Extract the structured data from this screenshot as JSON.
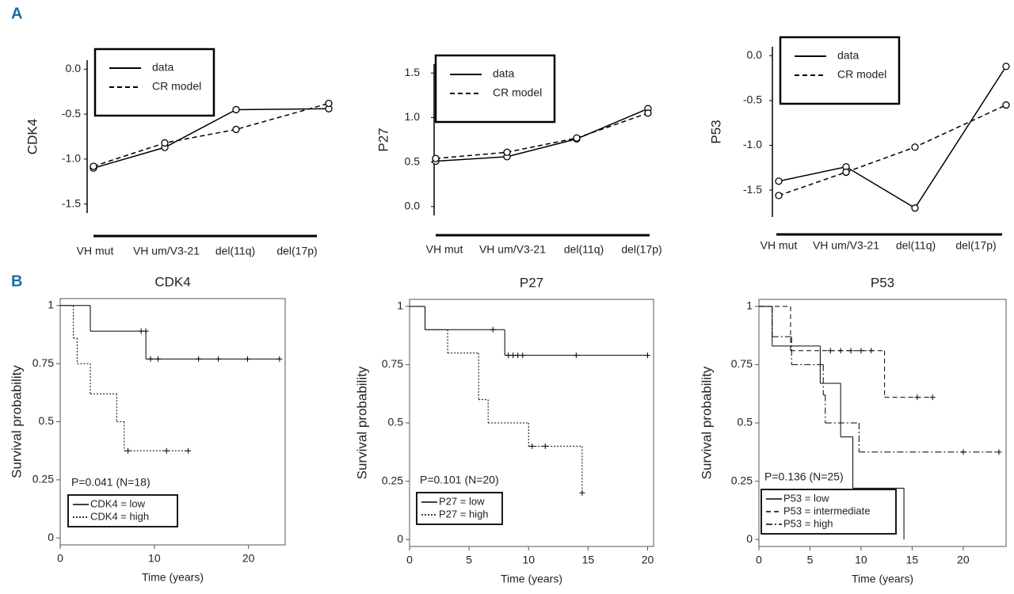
{
  "panel_labels": [
    "A",
    "B"
  ],
  "chart_data": [
    {
      "type": "line",
      "ylabel": "CDK4",
      "marker": "circle",
      "categories": [
        "VH mut",
        "VH um/V3-21",
        "del(11q)",
        "del(17p)"
      ],
      "series": [
        {
          "name": "data",
          "color": "#000000",
          "dash": "solid",
          "values": [
            -1.1,
            -0.87,
            -0.45,
            -0.44
          ]
        },
        {
          "name": "CR model",
          "color": "#000000",
          "dash": "dashed",
          "values": [
            -1.08,
            -0.82,
            -0.67,
            -0.38
          ]
        }
      ],
      "ylim": [
        -1.6,
        0.1
      ],
      "yticks": [
        {
          "value": 0,
          "label": "0.0"
        },
        -0.5,
        {
          "value": -1,
          "label": "-1.0"
        },
        -1.5
      ]
    },
    {
      "type": "line",
      "ylabel": "P27",
      "marker": "circle",
      "categories": [
        "VH mut",
        "VH um/V3-21",
        "del(11q)",
        "del(17p)"
      ],
      "series": [
        {
          "name": "data",
          "color": "#000000",
          "dash": "solid",
          "values": [
            0.51,
            0.56,
            0.76,
            1.1
          ]
        },
        {
          "name": "CR model",
          "color": "#000000",
          "dash": "dashed",
          "values": [
            0.54,
            0.61,
            0.77,
            1.05
          ]
        }
      ],
      "ylim": [
        -0.1,
        1.6
      ],
      "yticks": [
        {
          "value": 0,
          "label": "0.0"
        },
        0.5,
        {
          "value": 1,
          "label": "1.0"
        },
        1.5
      ]
    },
    {
      "type": "line",
      "ylabel": "P53",
      "marker": "circle",
      "categories": [
        "VH mut",
        "VH um/V3-21",
        "del(11q)",
        "del(17p)"
      ],
      "series": [
        {
          "name": "data",
          "color": "#000000",
          "dash": "solid",
          "values": [
            -1.4,
            -1.24,
            -1.7,
            -0.12
          ]
        },
        {
          "name": "CR model",
          "color": "#000000",
          "dash": "dashed",
          "values": [
            -1.56,
            -1.3,
            -1.02,
            -0.55
          ]
        }
      ],
      "ylim": [
        -1.8,
        0.1
      ],
      "yticks": [
        {
          "value": 0,
          "label": "0.0"
        },
        -0.5,
        {
          "value": -1,
          "label": "-1.0"
        },
        -1.5
      ]
    },
    {
      "type": "step",
      "title": "CDK4",
      "xlabel": "Time (years)",
      "ylabel": "Survival probability",
      "annotation": "P=0.041 (N=18)",
      "xlim": [
        0,
        23.9
      ],
      "xticks": [
        0,
        10,
        20
      ],
      "ylim": [
        -0.03,
        1.03
      ],
      "yticks": [
        0,
        0.25,
        0.5,
        0.75,
        1
      ],
      "series": [
        {
          "name": "CDK4 = low",
          "color": "#000000",
          "dash": "solid",
          "x": [
            0,
            3.2,
            9.1,
            23.3
          ],
          "values": [
            1,
            0.89,
            0.77,
            0.77
          ],
          "censor_x": [
            8.6,
            9.1,
            9.6,
            10.4,
            14.7,
            16.8,
            19.9,
            23.3
          ],
          "censor_values": [
            0.89,
            0.89,
            0.77,
            0.77,
            0.77,
            0.77,
            0.77,
            0.77
          ]
        },
        {
          "name": "CDK4 = high",
          "color": "#000000",
          "dash": "dotted",
          "x": [
            0,
            1.4,
            1.8,
            3.2,
            6,
            6.8,
            13.6
          ],
          "values": [
            1,
            0.86,
            0.75,
            0.62,
            0.5,
            0.375,
            0.375
          ],
          "censor_x": [
            7.2,
            11.3,
            13.6
          ],
          "censor_values": [
            0.375,
            0.375,
            0.375
          ]
        }
      ]
    },
    {
      "type": "step",
      "title": "P27",
      "xlabel": "Time (years)",
      "ylabel": "Survival probability",
      "annotation": "P=0.101 (N=20)",
      "xlim": [
        0,
        20.5
      ],
      "xticks": [
        0,
        5,
        10,
        15,
        20
      ],
      "ylim": [
        -0.03,
        1.03
      ],
      "yticks": [
        0,
        0.25,
        0.5,
        0.75,
        1
      ],
      "series": [
        {
          "name": "P27 = low",
          "color": "#000000",
          "dash": "solid",
          "x": [
            0,
            1.3,
            8,
            20
          ],
          "values": [
            1,
            0.9,
            0.79,
            0.79
          ],
          "censor_x": [
            7,
            8.3,
            8.7,
            9.1,
            9.5,
            14,
            20
          ],
          "censor_values": [
            0.9,
            0.79,
            0.79,
            0.79,
            0.79,
            0.79,
            0.79
          ]
        },
        {
          "name": "P27 = high",
          "color": "#000000",
          "dash": "dotted",
          "x": [
            0,
            1.3,
            3.2,
            5.8,
            6.6,
            10,
            14.5
          ],
          "values": [
            1,
            0.9,
            0.8,
            0.6,
            0.5,
            0.4,
            0.2
          ],
          "censor_x": [
            10.3,
            11.4,
            14.5
          ],
          "censor_values": [
            0.4,
            0.4,
            0.2
          ]
        }
      ]
    },
    {
      "type": "step",
      "title": "P53",
      "xlabel": "Time (years)",
      "ylabel": "Survival probability",
      "annotation": "P=0.136 (N=25)",
      "xlim": [
        0,
        24.2
      ],
      "xticks": [
        0,
        5,
        10,
        15,
        20
      ],
      "ylim": [
        -0.03,
        1.03
      ],
      "yticks": [
        0,
        0.25,
        0.5,
        0.75,
        1
      ],
      "series": [
        {
          "name": "P53 = low",
          "color": "#000000",
          "dash": "solid",
          "x": [
            0,
            1.3,
            6,
            8,
            9.2,
            14.2
          ],
          "values": [
            1,
            0.83,
            0.67,
            0.44,
            0.22,
            0
          ],
          "censor_x": [],
          "censor_values": []
        },
        {
          "name": "P53 = intermediate",
          "color": "#000000",
          "dash": "dashed",
          "x": [
            0,
            3.1,
            12.3,
            17
          ],
          "values": [
            1,
            0.81,
            0.61,
            0.61
          ],
          "censor_x": [
            7,
            8,
            9,
            10,
            11,
            15.5,
            17
          ],
          "censor_values": [
            0.81,
            0.81,
            0.81,
            0.81,
            0.81,
            0.61,
            0.61
          ]
        },
        {
          "name": "P53 = high",
          "color": "#000000",
          "dash": "dashdot",
          "x": [
            0,
            1.3,
            3.2,
            6.3,
            6.5,
            9.8,
            23.5
          ],
          "values": [
            1,
            0.87,
            0.75,
            0.62,
            0.5,
            0.375,
            0.375
          ],
          "censor_x": [
            20,
            23.5
          ],
          "censor_values": [
            0.375,
            0.375
          ]
        }
      ]
    }
  ]
}
